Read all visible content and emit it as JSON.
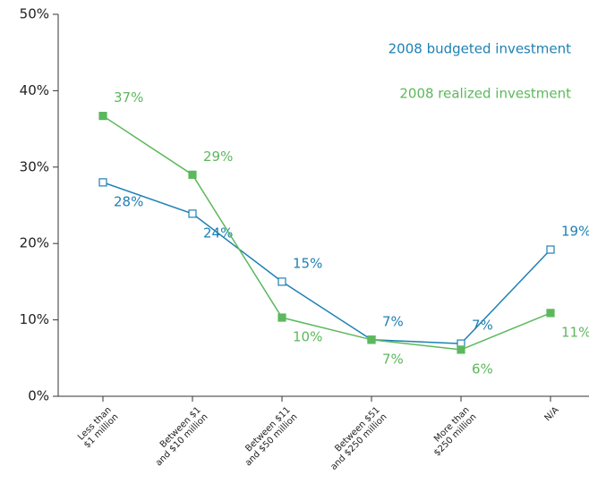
{
  "chart_data": {
    "type": "line",
    "categories": [
      "Less than\n$1 million",
      "Between $1\nand $10 million",
      "Between $11\nand $50 million",
      "Between $51\nand $250 million",
      "More than\n$250 million",
      "N/A"
    ],
    "series": [
      {
        "name": "2008 budgeted investment",
        "color": "#1f80b4",
        "marker": "hollow-square",
        "values": [
          28,
          23.9,
          15,
          7.4,
          6.9,
          19.2
        ],
        "value_labels": [
          "28%",
          "24%",
          "15%",
          "7%",
          "7%",
          "19%"
        ]
      },
      {
        "name": "2008 realized investment",
        "color": "#5cb85c",
        "marker": "filled-square",
        "values": [
          36.7,
          29,
          10.3,
          7.4,
          6.1,
          10.9
        ],
        "value_labels": [
          "37%",
          "29%",
          "10%",
          "7%",
          "6%",
          "11%"
        ]
      }
    ],
    "ylim": [
      0,
      50
    ],
    "yticks": [
      {
        "value": 0,
        "label": "0%"
      },
      {
        "value": 10,
        "label": "10%"
      },
      {
        "value": 20,
        "label": "20%"
      },
      {
        "value": 30,
        "label": "30%"
      },
      {
        "value": 40,
        "label": "40%"
      },
      {
        "value": 50,
        "label": "50%"
      }
    ],
    "grid": false,
    "legend": "upper right"
  }
}
